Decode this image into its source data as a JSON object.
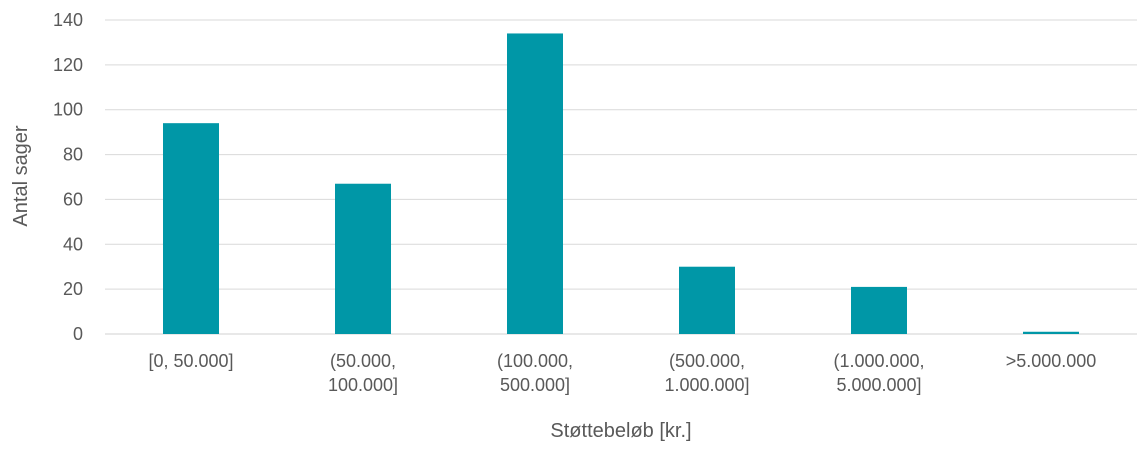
{
  "chart_data": {
    "type": "bar",
    "categories": [
      [
        "[0, 50.000]"
      ],
      [
        "(50.000,",
        "100.000]"
      ],
      [
        "(100.000,",
        "500.000]"
      ],
      [
        "(500.000,",
        "1.000.000]"
      ],
      [
        "(1.000.000,",
        "5.000.000]"
      ],
      [
        ">5.000.000"
      ]
    ],
    "values": [
      94,
      67,
      134,
      30,
      21,
      1
    ],
    "xlabel": "Støttebeløb [kr.]",
    "ylabel": "Antal sager",
    "ylim": [
      0,
      140
    ],
    "yticks": [
      0,
      20,
      40,
      60,
      80,
      100,
      120,
      140
    ],
    "grid": true,
    "bar_color": "#0097a7"
  }
}
